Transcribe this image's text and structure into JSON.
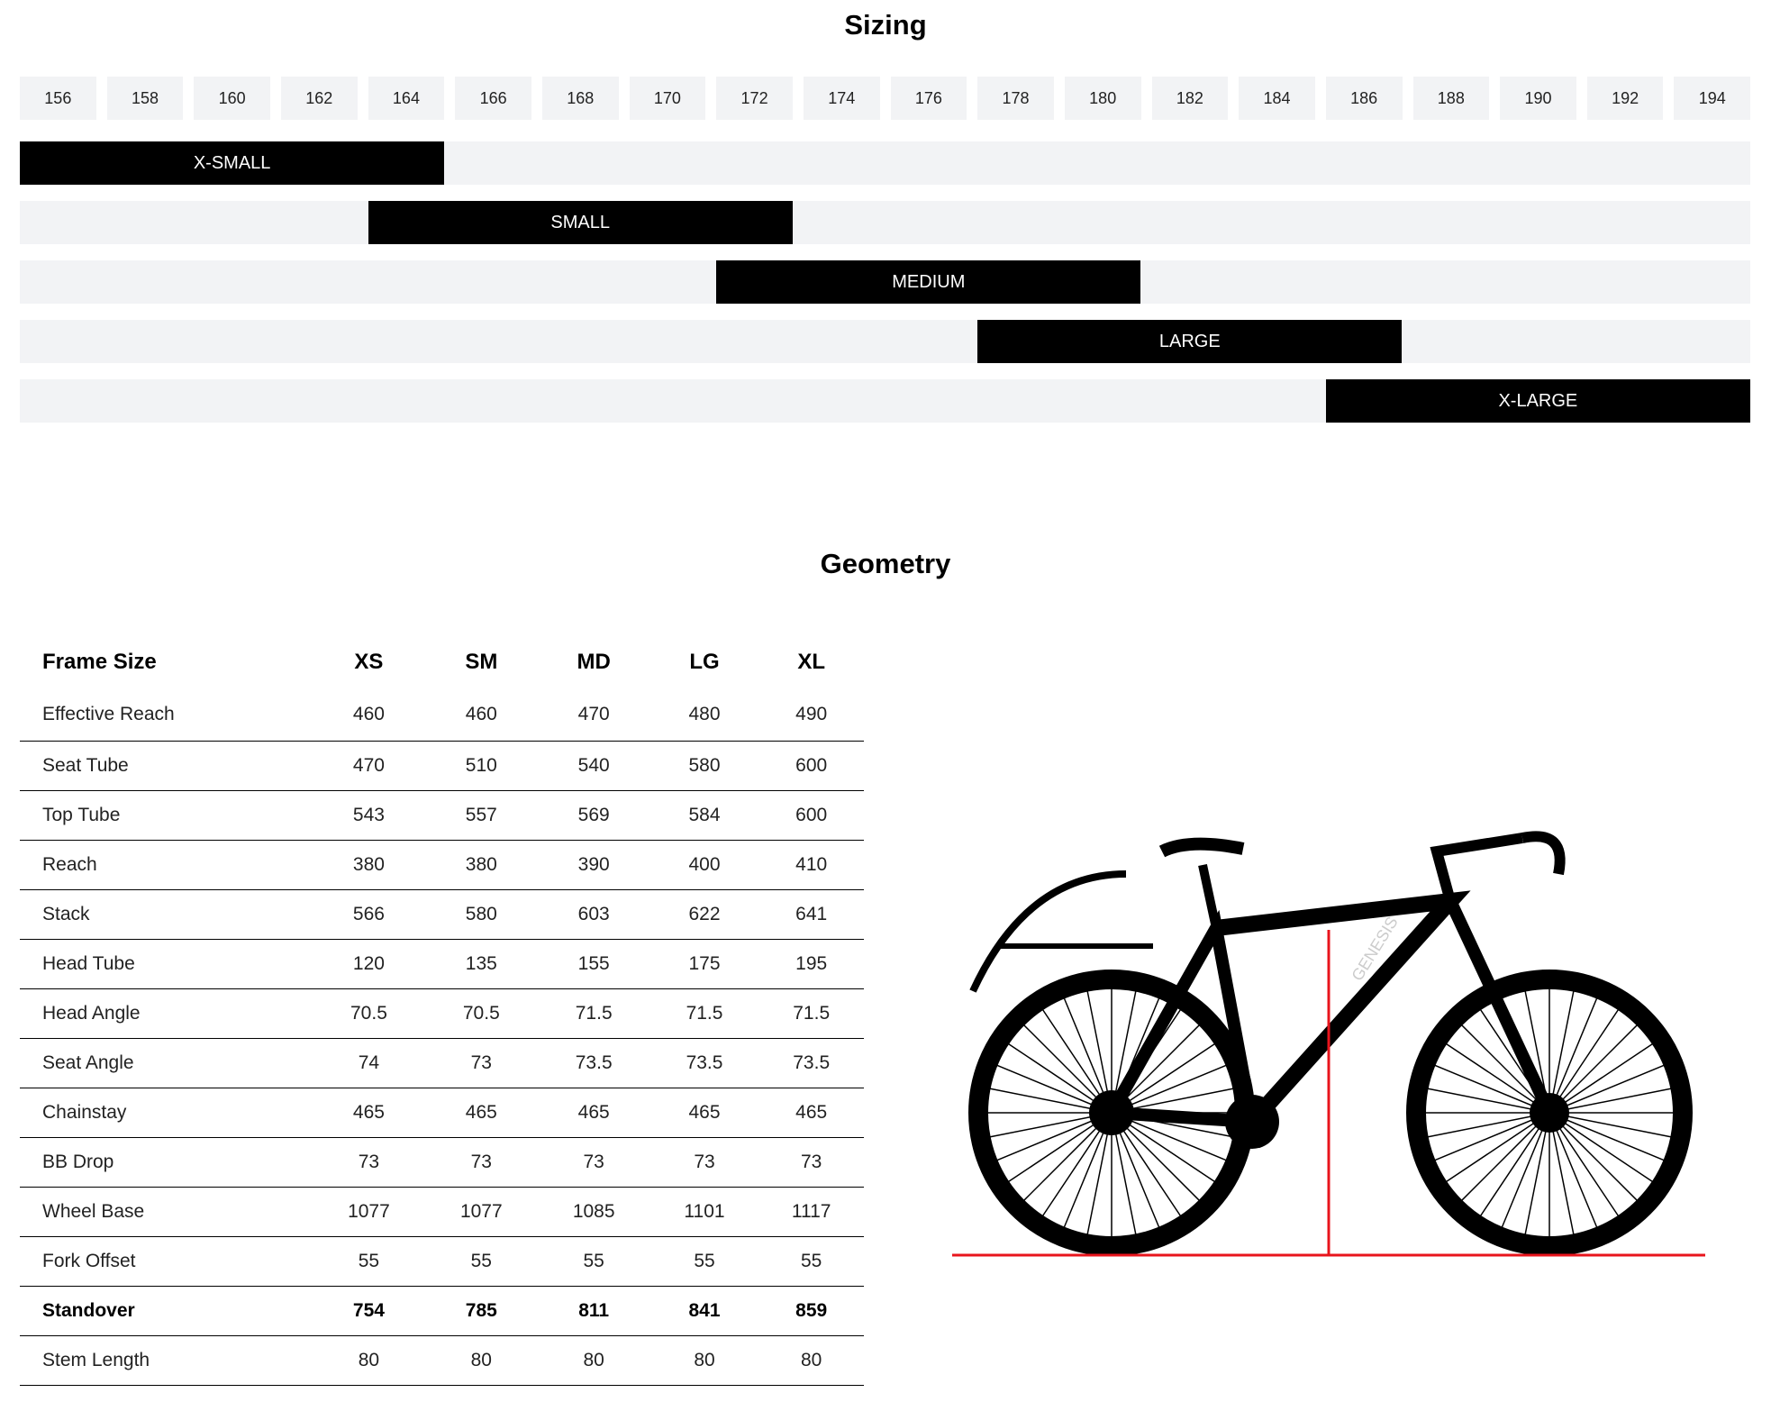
{
  "sizing": {
    "title": "Sizing",
    "heights": [
      "156",
      "158",
      "160",
      "162",
      "164",
      "166",
      "168",
      "170",
      "172",
      "174",
      "176",
      "178",
      "180",
      "182",
      "184",
      "186",
      "188",
      "190",
      "192",
      "194"
    ],
    "sizes": [
      {
        "label": "X-SMALL",
        "from": "156",
        "to": "164"
      },
      {
        "label": "SMALL",
        "from": "164",
        "to": "172"
      },
      {
        "label": "MEDIUM",
        "from": "172",
        "to": "180"
      },
      {
        "label": "LARGE",
        "from": "178",
        "to": "186"
      },
      {
        "label": "X-LARGE",
        "from": "186",
        "to": "194"
      }
    ]
  },
  "geometry": {
    "title": "Geometry",
    "headers": [
      "Frame Size",
      "XS",
      "SM",
      "MD",
      "LG",
      "XL"
    ],
    "rows": [
      {
        "label": "Effective Reach",
        "values": [
          "460",
          "460",
          "470",
          "480",
          "490"
        ]
      },
      {
        "label": "Seat Tube",
        "values": [
          "470",
          "510",
          "540",
          "580",
          "600"
        ]
      },
      {
        "label": "Top Tube",
        "values": [
          "543",
          "557",
          "569",
          "584",
          "600"
        ]
      },
      {
        "label": "Reach",
        "values": [
          "380",
          "380",
          "390",
          "400",
          "410"
        ]
      },
      {
        "label": "Stack",
        "values": [
          "566",
          "580",
          "603",
          "622",
          "641"
        ]
      },
      {
        "label": "Head Tube",
        "values": [
          "120",
          "135",
          "155",
          "175",
          "195"
        ]
      },
      {
        "label": "Head Angle",
        "values": [
          "70.5",
          "70.5",
          "71.5",
          "71.5",
          "71.5"
        ]
      },
      {
        "label": "Seat Angle",
        "values": [
          "74",
          "73",
          "73.5",
          "73.5",
          "73.5"
        ]
      },
      {
        "label": "Chainstay",
        "values": [
          "465",
          "465",
          "465",
          "465",
          "465"
        ]
      },
      {
        "label": "BB Drop",
        "values": [
          "73",
          "73",
          "73",
          "73",
          "73"
        ]
      },
      {
        "label": "Wheel Base",
        "values": [
          "1077",
          "1077",
          "1085",
          "1101",
          "1117"
        ]
      },
      {
        "label": "Fork Offset",
        "values": [
          "55",
          "55",
          "55",
          "55",
          "55"
        ]
      },
      {
        "label": "Standover",
        "values": [
          "754",
          "785",
          "811",
          "841",
          "859"
        ],
        "bold": true
      },
      {
        "label": "Stem Length",
        "values": [
          "80",
          "80",
          "80",
          "80",
          "80"
        ]
      }
    ],
    "bike_image": {
      "brand_text": "GENESIS",
      "guide_color": "#e8141c"
    }
  }
}
